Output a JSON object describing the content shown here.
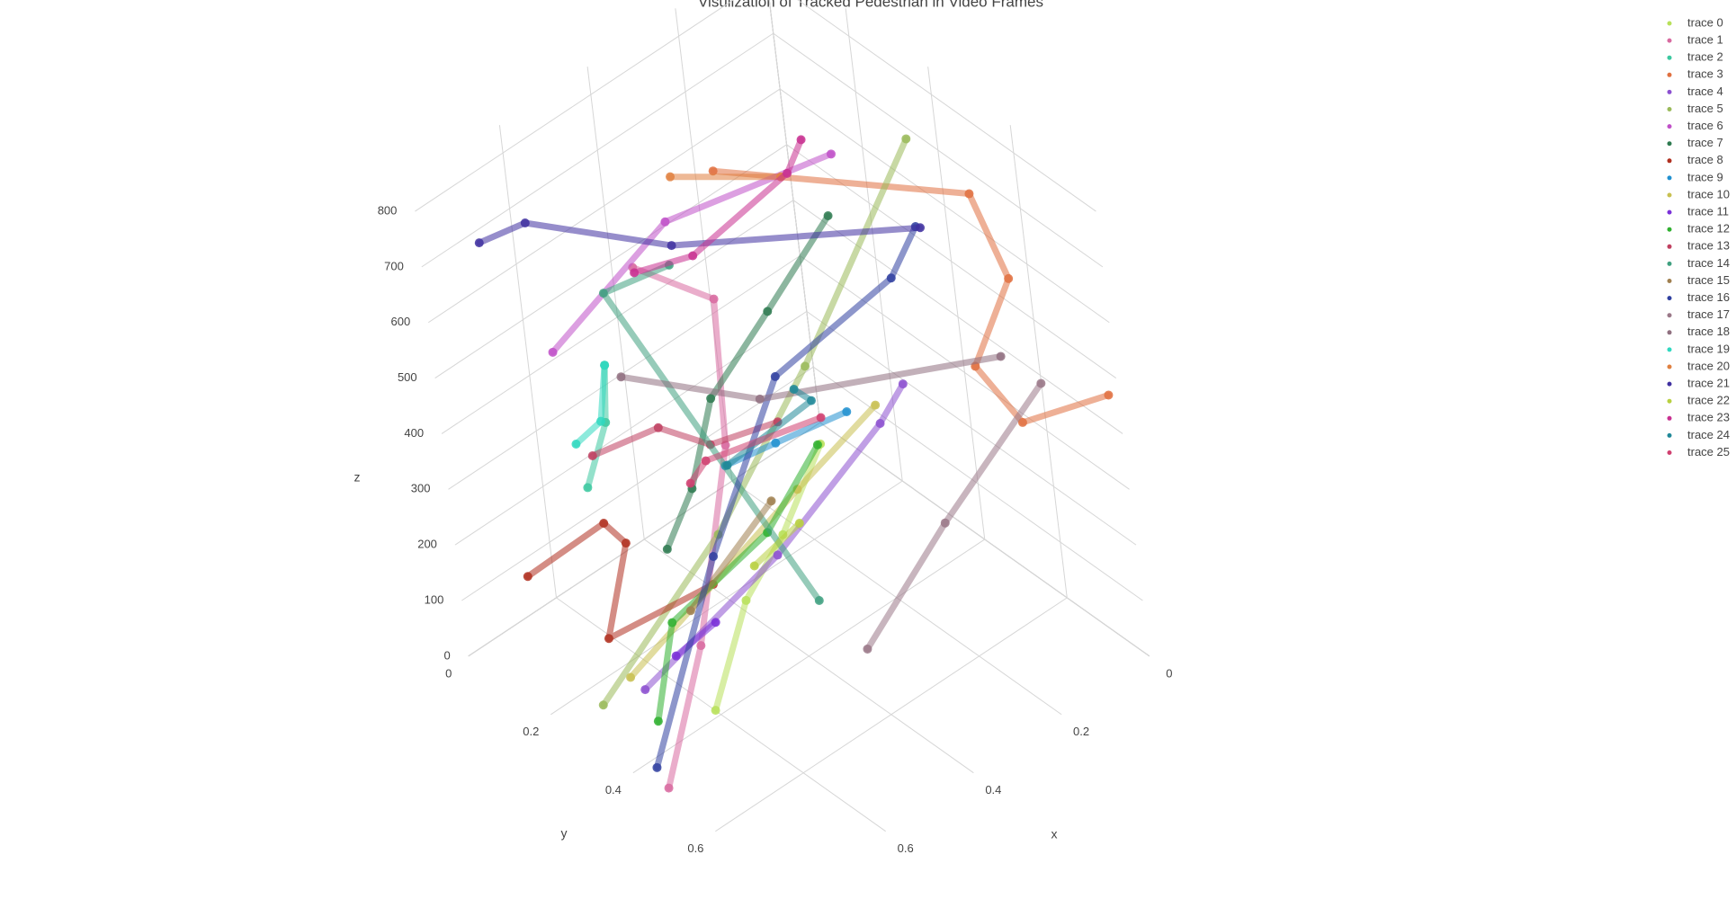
{
  "chart_data": {
    "type": "scatter3d",
    "title": "Visulization of Tracked Pedestrian in Video Frames",
    "xaxis_title": "x",
    "yaxis_title": "y",
    "zaxis_title": "z",
    "xlim": [
      0,
      0.8
    ],
    "ylim": [
      0,
      0.8
    ],
    "zlim": [
      0,
      850
    ],
    "xticks": [
      0,
      0.2,
      0.4,
      0.6
    ],
    "yticks": [
      0,
      0.2,
      0.4,
      0.6
    ],
    "zticks": [
      0,
      100,
      200,
      300,
      400,
      500,
      600,
      700,
      800
    ],
    "grid": true,
    "legend_position": "top-right",
    "series": [
      {
        "name": "trace 0",
        "color": "#b8e05a",
        "x": [
          0.65,
          0.55,
          0.44,
          0.33
        ],
        "y": [
          0.45,
          0.44,
          0.42,
          0.41
        ],
        "z": [
          60,
          200,
          250,
          350
        ]
      },
      {
        "name": "trace 1",
        "color": "#d86aa0",
        "x": [
          0.8,
          0.72,
          0.57,
          0.51,
          0.57
        ],
        "y": [
          0.49,
          0.52,
          0.46,
          0.4,
          0.27
        ],
        "z": [
          20,
          250,
          500,
          700,
          720
        ]
      },
      {
        "name": "trace 2",
        "color": "#3cc8a0",
        "x": [
          0.76,
          0.69,
          0.63
        ],
        "y": [
          0.32,
          0.3,
          0.24
        ],
        "z": [
          450,
          520,
          560
        ]
      },
      {
        "name": "trace 3",
        "color": "#e07040",
        "x": [
          0.4,
          0.12,
          0.13,
          0.23,
          0.2,
          0.02
        ],
        "y": [
          0.3,
          0.62,
          0.71,
          0.72,
          0.79,
          0.8
        ],
        "z": [
          820,
          800,
          700,
          600,
          520,
          480
        ]
      },
      {
        "name": "trace 4",
        "color": "#8c50d0",
        "x": [
          0.69,
          0.48,
          0.31,
          0.26
        ],
        "y": [
          0.32,
          0.45,
          0.55,
          0.56
        ],
        "z": [
          50,
          250,
          450,
          500
        ]
      },
      {
        "name": "trace 5",
        "color": "#9aba5a",
        "x": [
          0.79,
          0.6,
          0.43,
          0.12
        ],
        "y": [
          0.33,
          0.45,
          0.52,
          0.47
        ],
        "z": [
          80,
          350,
          600,
          820
        ]
      },
      {
        "name": "trace 6",
        "color": "#c050c8",
        "x": [
          0.72,
          0.49,
          0.25
        ],
        "y": [
          0.22,
          0.27,
          0.43
        ],
        "z": [
          620,
          760,
          840
        ]
      },
      {
        "name": "trace 7",
        "color": "#2e7a50",
        "x": [
          0.6,
          0.58,
          0.51,
          0.4,
          0.28
        ],
        "y": [
          0.31,
          0.37,
          0.36,
          0.4,
          0.44
        ],
        "z": [
          250,
          380,
          500,
          620,
          750
        ]
      },
      {
        "name": "trace 8",
        "color": "#b03020",
        "x": [
          0.75,
          0.64,
          0.63,
          0.69,
          0.52
        ],
        "y": [
          0.12,
          0.2,
          0.24,
          0.24,
          0.32
        ],
        "z": [
          180,
          260,
          240,
          100,
          150
        ]
      },
      {
        "name": "trace 9",
        "color": "#2090d0",
        "x": [
          0.52,
          0.44,
          0.33
        ],
        "y": [
          0.39,
          0.43,
          0.49
        ],
        "z": [
          400,
          420,
          450
        ]
      },
      {
        "name": "trace 10",
        "color": "#c8c050",
        "x": [
          0.67,
          0.39,
          0.26
        ],
        "y": [
          0.26,
          0.41,
          0.48
        ],
        "z": [
          30,
          300,
          420
        ]
      },
      {
        "name": "trace 11",
        "color": "#7a30d8",
        "x": [
          0.64,
          0.58
        ],
        "y": [
          0.35,
          0.39
        ],
        "z": [
          100,
          150
        ]
      },
      {
        "name": "trace 12",
        "color": "#30b030",
        "x": [
          0.71,
          0.64,
          0.48,
          0.36
        ],
        "y": [
          0.37,
          0.35,
          0.43,
          0.44
        ],
        "z": [
          30,
          160,
          280,
          380
        ]
      },
      {
        "name": "trace 13",
        "color": "#c04060",
        "x": [
          0.71,
          0.62,
          0.57,
          0.47
        ],
        "y": [
          0.28,
          0.35,
          0.42,
          0.48
        ],
        "z": [
          460,
          500,
          480,
          500
        ]
      },
      {
        "name": "trace 14",
        "color": "#40a080",
        "x": [
          0.38,
          0.63,
          0.54
        ],
        "y": [
          0.42,
          0.26,
          0.33
        ],
        "z": [
          100,
          700,
          740
        ]
      },
      {
        "name": "trace 15",
        "color": "#a08050",
        "x": [
          0.59,
          0.44
        ],
        "y": [
          0.34,
          0.4
        ],
        "z": [
          150,
          300
        ]
      },
      {
        "name": "trace 16",
        "color": "#3040a0",
        "x": [
          0.78,
          0.6,
          0.44,
          0.25,
          0.17
        ],
        "y": [
          0.44,
          0.43,
          0.45,
          0.55,
          0.53
        ],
        "z": [
          20,
          300,
          550,
          680,
          720
        ]
      },
      {
        "name": "trace 17",
        "color": "#9a7888",
        "x": [
          0.37,
          0.23,
          0.08
        ],
        "y": [
          0.52,
          0.59,
          0.7
        ],
        "z": [
          60,
          250,
          480
        ]
      },
      {
        "name": "trace 18",
        "color": "#907080",
        "x": [
          0.63,
          0.47,
          0.15
        ],
        "y": [
          0.28,
          0.44,
          0.69
        ],
        "z": [
          560,
          520,
          560
        ]
      },
      {
        "name": "trace 19",
        "color": "#30d8c0",
        "x": [
          0.63,
          0.66,
          0.71
        ],
        "y": [
          0.24,
          0.25,
          0.24
        ],
        "z": [
          560,
          480,
          460
        ]
      },
      {
        "name": "trace 20",
        "color": "#e08040",
        "x": [
          0.46,
          0.33
        ],
        "y": [
          0.26,
          0.39
        ],
        "z": [
          820,
          820
        ]
      },
      {
        "name": "trace 21",
        "color": "#4030a0",
        "x": [
          0.76,
          0.69,
          0.53,
          0.2
        ],
        "y": [
          0.11,
          0.15,
          0.33,
          0.58
        ],
        "z": [
          780,
          800,
          770,
          760
        ]
      },
      {
        "name": "trace 22",
        "color": "#b8d040",
        "x": [
          0.5,
          0.41
        ],
        "y": [
          0.41,
          0.43
        ],
        "z": [
          220,
          260
        ]
      },
      {
        "name": "trace 23",
        "color": "#c83090",
        "x": [
          0.27,
          0.3,
          0.48,
          0.56
        ],
        "y": [
          0.38,
          0.37,
          0.32,
          0.26
        ],
        "z": [
          850,
          800,
          720,
          700
        ]
      },
      {
        "name": "trace 24",
        "color": "#208898",
        "x": [
          0.38,
          0.37,
          0.5
        ],
        "y": [
          0.42,
          0.45,
          0.37
        ],
        "z": [
          480,
          470,
          380
        ]
      },
      {
        "name": "trace 25",
        "color": "#d04070",
        "x": [
          0.59,
          0.56,
          0.37
        ],
        "y": [
          0.38,
          0.39,
          0.47
        ],
        "z": [
          400,
          430,
          450
        ]
      }
    ]
  }
}
